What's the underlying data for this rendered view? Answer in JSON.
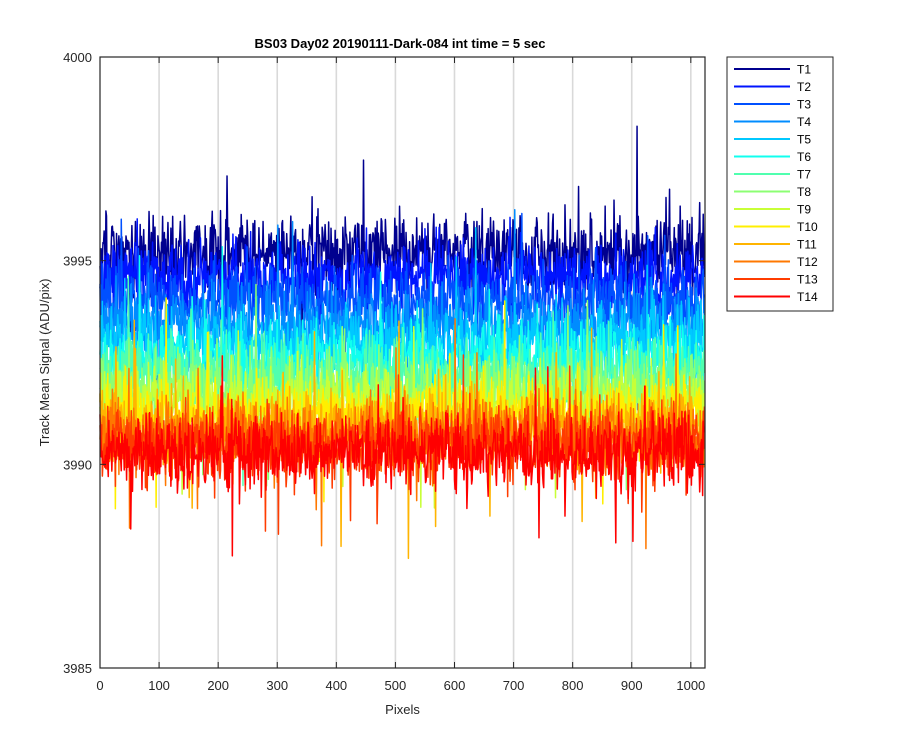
{
  "chart_data": {
    "type": "line",
    "title": "BS03 Day02 20190111-Dark-084 int time = 5 sec",
    "xlabel": "Pixels",
    "ylabel": "Track Mean Signal (ADU/pix)",
    "xlim": [
      0,
      1024
    ],
    "ylim": [
      3985,
      4000
    ],
    "xticks": [
      0,
      100,
      200,
      300,
      400,
      500,
      600,
      700,
      800,
      900,
      1000
    ],
    "yticks": [
      3985,
      3990,
      3995,
      4000
    ],
    "grid": "vertical",
    "legend_position": "outside-right",
    "n_points_per_series": 1024,
    "series": [
      {
        "name": "T1",
        "color": "#00008f",
        "mean": 3995.2,
        "noise_sd": 0.95,
        "min": 3991.0,
        "max": 3998.3
      },
      {
        "name": "T2",
        "color": "#0014ff",
        "mean": 3994.6,
        "noise_sd": 0.9,
        "min": 3990.6,
        "max": 3997.8
      },
      {
        "name": "T3",
        "color": "#0050ff",
        "mean": 3994.0,
        "noise_sd": 0.9,
        "min": 3990.2,
        "max": 3997.4
      },
      {
        "name": "T4",
        "color": "#008cff",
        "mean": 3993.4,
        "noise_sd": 0.9,
        "min": 3987.7,
        "max": 3996.8
      },
      {
        "name": "T5",
        "color": "#00c8ff",
        "mean": 3993.0,
        "noise_sd": 0.9,
        "min": 3989.4,
        "max": 3996.4
      },
      {
        "name": "T6",
        "color": "#10ffef",
        "mean": 3992.6,
        "noise_sd": 0.9,
        "min": 3989.0,
        "max": 3996.0
      },
      {
        "name": "T7",
        "color": "#50ffaf",
        "mean": 3992.2,
        "noise_sd": 0.9,
        "min": 3988.6,
        "max": 3995.6
      },
      {
        "name": "T8",
        "color": "#8cff73",
        "mean": 3991.8,
        "noise_sd": 0.9,
        "min": 3986.8,
        "max": 3995.3
      },
      {
        "name": "T9",
        "color": "#c8ff37",
        "mean": 3991.5,
        "noise_sd": 0.9,
        "min": 3987.2,
        "max": 3995.0
      },
      {
        "name": "T10",
        "color": "#ffef00",
        "mean": 3991.2,
        "noise_sd": 0.9,
        "min": 3987.2,
        "max": 3994.7
      },
      {
        "name": "T11",
        "color": "#ffb400",
        "mean": 3990.9,
        "noise_sd": 0.9,
        "min": 3986.8,
        "max": 3994.4
      },
      {
        "name": "T12",
        "color": "#ff7800",
        "mean": 3990.7,
        "noise_sd": 0.9,
        "min": 3987.0,
        "max": 3994.1
      },
      {
        "name": "T13",
        "color": "#ff3c00",
        "mean": 3990.5,
        "noise_sd": 0.9,
        "min": 3987.2,
        "max": 3993.8
      },
      {
        "name": "T14",
        "color": "#ff0000",
        "mean": 3990.3,
        "noise_sd": 0.9,
        "min": 3986.0,
        "max": 3993.6
      }
    ]
  }
}
